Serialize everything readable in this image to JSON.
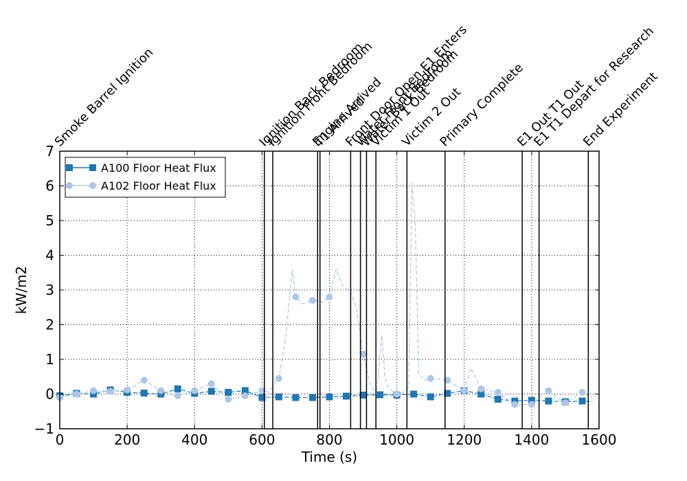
{
  "chart_data": {
    "type": "line",
    "xlabel": "Time (s)",
    "ylabel": "kW/m2",
    "xlim": [
      0,
      1600
    ],
    "ylim": [
      -1,
      7
    ],
    "xticks": [
      0,
      200,
      400,
      600,
      800,
      1000,
      1200,
      1400,
      1600
    ],
    "yticks": [
      -1,
      0,
      1,
      2,
      3,
      4,
      5,
      6,
      7
    ],
    "grid": true,
    "legend_position": "top-left",
    "series": [
      {
        "name": "A100 Floor Heat Flux",
        "color": "#1f77b4",
        "marker": "square",
        "line_style": "dashed",
        "x": [
          0,
          50,
          100,
          150,
          200,
          250,
          300,
          350,
          400,
          450,
          500,
          550,
          600,
          650,
          700,
          750,
          800,
          850,
          900,
          950,
          1000,
          1050,
          1100,
          1150,
          1200,
          1250,
          1300,
          1350,
          1400,
          1450,
          1500,
          1550,
          1580
        ],
        "y": [
          -0.05,
          0.02,
          0.0,
          0.12,
          0.05,
          0.03,
          0.0,
          0.15,
          0.02,
          0.08,
          0.05,
          0.1,
          -0.1,
          -0.08,
          -0.1,
          -0.1,
          -0.08,
          -0.06,
          -0.03,
          -0.02,
          -0.03,
          0.0,
          -0.08,
          0.02,
          0.1,
          0.0,
          -0.15,
          -0.2,
          -0.18,
          -0.2,
          -0.22,
          -0.2,
          -0.22
        ]
      },
      {
        "name": "A102 Floor Heat Flux",
        "color": "#aec7e8",
        "marker": "circle",
        "line_style": "dashed",
        "x": [
          0,
          50,
          100,
          150,
          200,
          250,
          300,
          350,
          400,
          450,
          500,
          550,
          600,
          620,
          650,
          670,
          690,
          700,
          720,
          750,
          780,
          800,
          820,
          840,
          860,
          880,
          900,
          920,
          940,
          955,
          965,
          975,
          990,
          1000,
          1020,
          1035,
          1045,
          1055,
          1065,
          1080,
          1100,
          1150,
          1200,
          1220,
          1250,
          1300,
          1350,
          1400,
          1450,
          1500,
          1550,
          1580
        ],
        "y": [
          -0.1,
          0.0,
          0.1,
          0.08,
          0.12,
          0.4,
          0.1,
          -0.05,
          0.1,
          0.3,
          -0.15,
          -0.05,
          0.1,
          0.05,
          0.45,
          1.6,
          3.6,
          2.8,
          2.6,
          2.7,
          2.65,
          2.8,
          3.6,
          3.1,
          3.0,
          2.5,
          1.15,
          0.3,
          0.0,
          1.7,
          0.45,
          0.2,
          0.05,
          0.0,
          0.05,
          0.2,
          6.1,
          4.8,
          0.6,
          0.4,
          0.45,
          0.4,
          0.1,
          0.75,
          0.15,
          0.05,
          -0.3,
          -0.3,
          0.1,
          -0.25,
          0.05,
          -0.1
        ]
      }
    ],
    "events": [
      {
        "x": 0,
        "label": "Smoke Barrel Ignition",
        "line": false
      },
      {
        "x": 607,
        "label": "Ignition Back Bedroom",
        "line": true
      },
      {
        "x": 632,
        "label": "Ignition Front Bedroom",
        "line": true
      },
      {
        "x": 765,
        "label": "Engine Arrived",
        "line": true
      },
      {
        "x": 772,
        "label": "T1 Arrived",
        "line": true
      },
      {
        "x": 863,
        "label": "Front Door Open E1 Enters",
        "line": true
      },
      {
        "x": 892,
        "label": "Water Front Bedroom",
        "line": true
      },
      {
        "x": 910,
        "label": "Water Back Bedroom",
        "line": true
      },
      {
        "x": 938,
        "label": "Victim 1 Out",
        "line": true
      },
      {
        "x": 1030,
        "label": "Victim 2 Out",
        "line": true
      },
      {
        "x": 1143,
        "label": "Primary Complete",
        "line": true
      },
      {
        "x": 1372,
        "label": "E1 Out T1 Out",
        "line": true
      },
      {
        "x": 1422,
        "label": "E1 T1 Depart for Research",
        "line": true
      },
      {
        "x": 1568,
        "label": "End Experiment",
        "line": true
      }
    ]
  }
}
